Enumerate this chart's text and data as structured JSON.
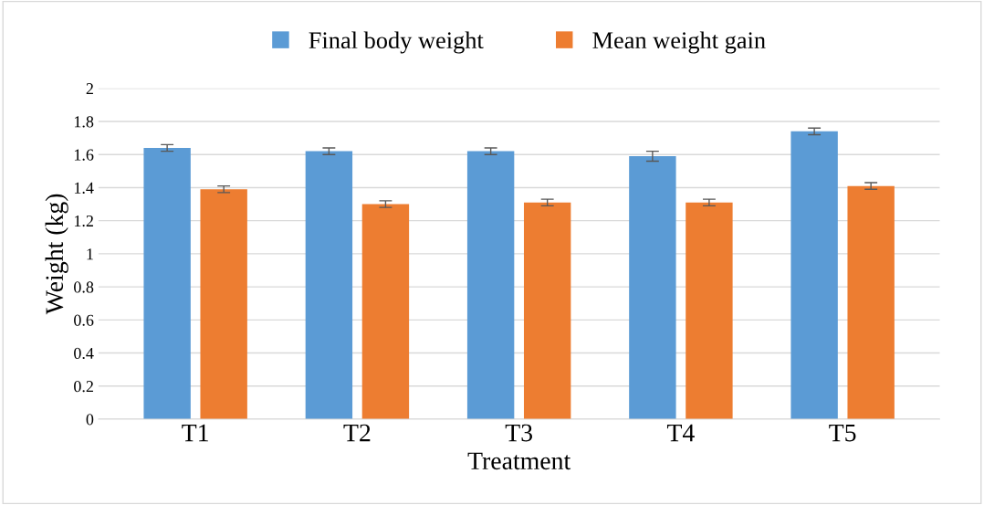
{
  "chart_data": {
    "type": "bar",
    "xlabel": "Treatment",
    "ylabel": "Weight (kg)",
    "categories": [
      "T1",
      "T2",
      "T3",
      "T4",
      "T5"
    ],
    "series": [
      {
        "name": "Final body weight",
        "color": "#5b9bd5",
        "values": [
          1.64,
          1.62,
          1.62,
          1.59,
          1.74
        ],
        "errors": [
          0.02,
          0.02,
          0.02,
          0.03,
          0.02
        ]
      },
      {
        "name": "Mean weight gain",
        "color": "#ed7d31",
        "values": [
          1.39,
          1.3,
          1.31,
          1.31,
          1.41
        ],
        "errors": [
          0.02,
          0.02,
          0.02,
          0.02,
          0.02
        ]
      }
    ],
    "ylim": [
      0,
      2
    ],
    "yticks": [
      0,
      0.2,
      0.4,
      0.6,
      0.8,
      1,
      1.2,
      1.4,
      1.6,
      1.8,
      2
    ],
    "grid": "y",
    "legend": "top"
  }
}
